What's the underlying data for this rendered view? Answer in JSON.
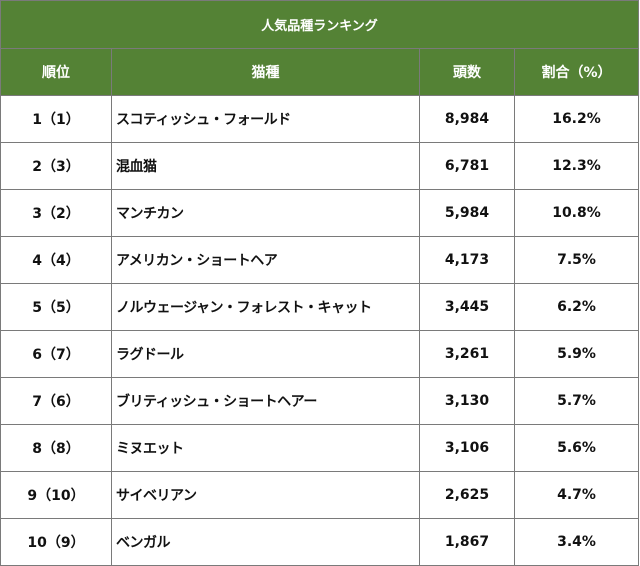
{
  "table": {
    "title": "人気品種ランキング",
    "headers": {
      "rank": "順位",
      "breed": "猫種",
      "count": "頭数",
      "share": "割合（%）"
    },
    "rows": [
      {
        "rank": "1（1）",
        "breed": "スコティッシュ・フォールド",
        "count": "8,984",
        "share": "16.2%"
      },
      {
        "rank": "2（3）",
        "breed": "混血猫",
        "count": "6,781",
        "share": "12.3%"
      },
      {
        "rank": "3（2）",
        "breed": "マンチカン",
        "count": "5,984",
        "share": "10.8%"
      },
      {
        "rank": "4（4）",
        "breed": "アメリカン・ショートヘア",
        "count": "4,173",
        "share": "7.5%"
      },
      {
        "rank": "5（5）",
        "breed": "ノルウェージャン・フォレスト・キャット",
        "count": "3,445",
        "share": "6.2%"
      },
      {
        "rank": "6（7）",
        "breed": "ラグドール",
        "count": "3,261",
        "share": "5.9%"
      },
      {
        "rank": "7（6）",
        "breed": "ブリティッシュ・ショートヘアー",
        "count": "3,130",
        "share": "5.7%"
      },
      {
        "rank": "8（8）",
        "breed": "ミヌエット",
        "count": "3,106",
        "share": "5.6%"
      },
      {
        "rank": "9（10）",
        "breed": "サイベリアン",
        "count": "2,625",
        "share": "4.7%"
      },
      {
        "rank": "10（9）",
        "breed": "ベンガル",
        "count": "1,867",
        "share": "3.4%"
      }
    ]
  },
  "colors": {
    "header_bg": "#548235",
    "header_text": "#ffffff",
    "border": "#7a7a7a"
  }
}
